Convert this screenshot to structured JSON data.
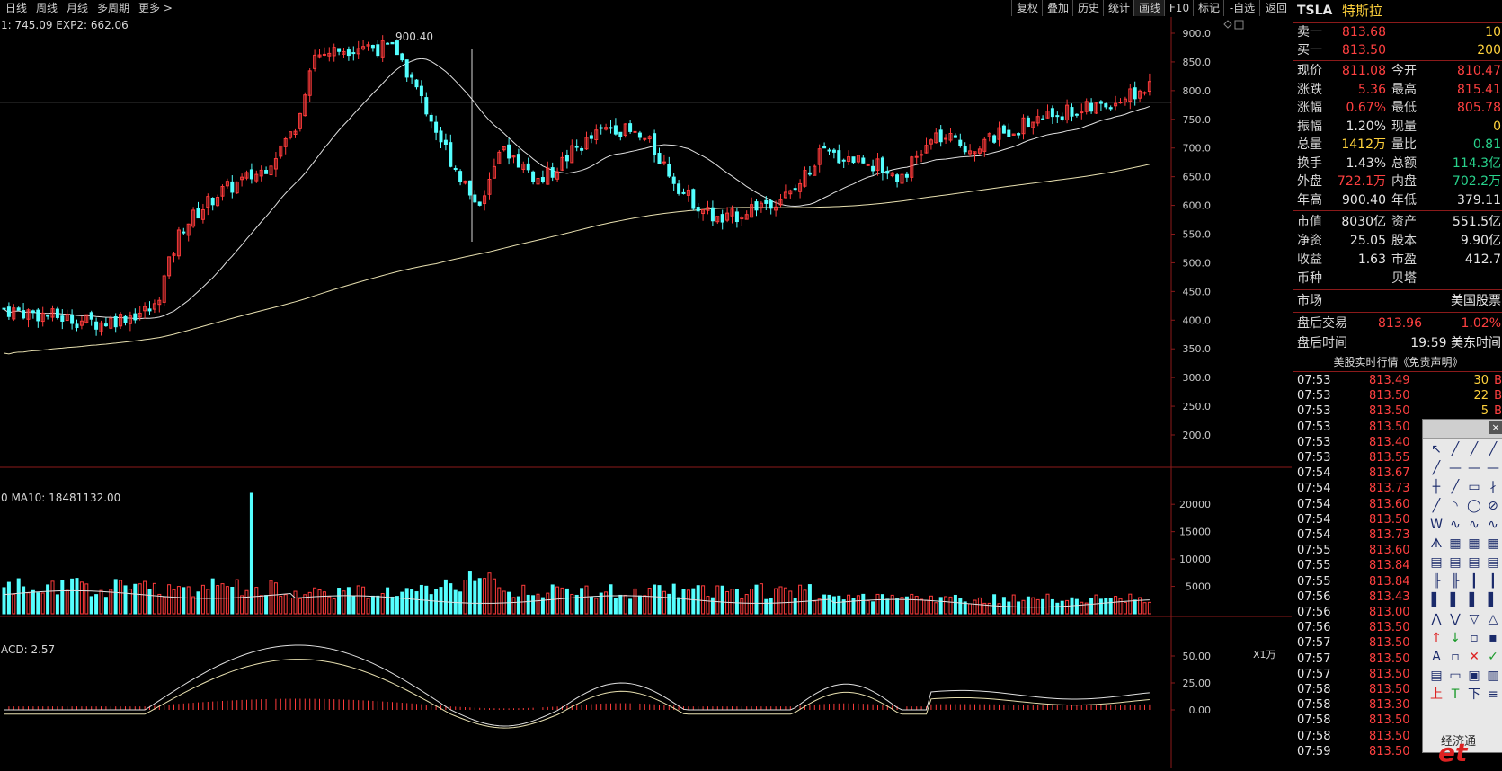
{
  "toolbar": {
    "left": [
      "日线",
      "周线",
      "月线",
      "多周期",
      "更多 >"
    ],
    "right": [
      "复权",
      "叠加",
      "历史",
      "统计",
      "画线",
      "F10",
      "标记",
      "-自选",
      "返回"
    ],
    "active": "画线"
  },
  "main_chart": {
    "indicator_text": "1: 745.09  EXP2: 662.06",
    "y_ticks": [
      "900.0",
      "850.0",
      "800.0",
      "750.0",
      "700.0",
      "650.0",
      "600.0",
      "550.0",
      "500.0",
      "450.0",
      "400.0",
      "350.0",
      "300.0",
      "250.0",
      "200.0"
    ],
    "high_label": "900.40",
    "ref_line_value": 780
  },
  "volume_chart": {
    "indicator_text": "0  MA10: 18481132.00",
    "y_ticks": [
      "20000",
      "15000",
      "10000",
      "5000"
    ],
    "unit": "X1万"
  },
  "macd_chart": {
    "indicator_text": "ACD: 2.57",
    "y_ticks": [
      "50.00",
      "25.00",
      "0.00"
    ]
  },
  "colors": {
    "up": "#ff3b3b",
    "down": "#54ffff",
    "grid": "#8b1a1a",
    "ma1": "#e0e0e0",
    "ma2": "#e8e0b0"
  },
  "quote": {
    "symbol": "TSLA",
    "name": "特斯拉",
    "sell1_label": "卖一",
    "sell1_price": "813.68",
    "sell1_vol": "10",
    "buy1_label": "买一",
    "buy1_price": "813.50",
    "buy1_vol": "200",
    "rows": [
      {
        "l1": "现价",
        "v1": "811.08",
        "c1": "red",
        "l2": "今开",
        "v2": "810.47",
        "c2": "red"
      },
      {
        "l1": "涨跌",
        "v1": "5.36",
        "c1": "red",
        "l2": "最高",
        "v2": "815.41",
        "c2": "red"
      },
      {
        "l1": "涨幅",
        "v1": "0.67%",
        "c1": "red",
        "l2": "最低",
        "v2": "805.78",
        "c2": "red"
      },
      {
        "l1": "振幅",
        "v1": "1.20%",
        "c1": "wht",
        "l2": "现量",
        "v2": "0",
        "c2": "yel"
      },
      {
        "l1": "总量",
        "v1": "1412万",
        "c1": "yel",
        "l2": "量比",
        "v2": "0.81",
        "c2": "grn"
      },
      {
        "l1": "换手",
        "v1": "1.43%",
        "c1": "wht",
        "l2": "总额",
        "v2": "114.3亿",
        "c2": "grn"
      },
      {
        "l1": "外盘",
        "v1": "722.1万",
        "c1": "red",
        "l2": "内盘",
        "v2": "702.2万",
        "c2": "grn"
      },
      {
        "l1": "年高",
        "v1": "900.40",
        "c1": "wht",
        "l2": "年低",
        "v2": "379.11",
        "c2": "wht"
      }
    ],
    "rows2": [
      {
        "l1": "市值",
        "v1": "8030亿",
        "l2": "资产",
        "v2": "551.5亿"
      },
      {
        "l1": "净资",
        "v1": "25.05",
        "l2": "股本",
        "v2": "9.90亿"
      },
      {
        "l1": "收益",
        "v1": "1.63",
        "l2": "市盈",
        "v2": "412.7"
      },
      {
        "l1": "币种",
        "v1": "",
        "l2": "贝塔",
        "v2": ""
      }
    ],
    "market_label": "市场",
    "market_value": "美国股票",
    "after_label": "盘后交易",
    "after_price": "813.96",
    "after_pct": "1.02%",
    "after_time_label": "盘后时间",
    "after_time": "19:59 美东时间",
    "ticks_title": "美股实时行情《免责声明》"
  },
  "ticks": [
    {
      "t": "07:53",
      "p": "813.49",
      "v": "30",
      "f": "B"
    },
    {
      "t": "07:53",
      "p": "813.50",
      "v": "22",
      "f": "B"
    },
    {
      "t": "07:53",
      "p": "813.50",
      "v": "5",
      "f": "B"
    },
    {
      "t": "07:53",
      "p": "813.50",
      "v": "",
      "f": ""
    },
    {
      "t": "07:53",
      "p": "813.40",
      "v": "",
      "f": ""
    },
    {
      "t": "07:53",
      "p": "813.55",
      "v": "",
      "f": ""
    },
    {
      "t": "07:54",
      "p": "813.67",
      "v": "",
      "f": ""
    },
    {
      "t": "07:54",
      "p": "813.73",
      "v": "",
      "f": ""
    },
    {
      "t": "07:54",
      "p": "813.60",
      "v": "",
      "f": ""
    },
    {
      "t": "07:54",
      "p": "813.50",
      "v": "",
      "f": ""
    },
    {
      "t": "07:54",
      "p": "813.73",
      "v": "",
      "f": ""
    },
    {
      "t": "07:55",
      "p": "813.60",
      "v": "",
      "f": ""
    },
    {
      "t": "07:55",
      "p": "813.84",
      "v": "",
      "f": ""
    },
    {
      "t": "07:55",
      "p": "813.84",
      "v": "",
      "f": ""
    },
    {
      "t": "07:56",
      "p": "813.43",
      "v": "",
      "f": ""
    },
    {
      "t": "07:56",
      "p": "813.00",
      "v": "",
      "f": ""
    },
    {
      "t": "07:56",
      "p": "813.50",
      "v": "",
      "f": ""
    },
    {
      "t": "07:57",
      "p": "813.50",
      "v": "",
      "f": ""
    },
    {
      "t": "07:57",
      "p": "813.50",
      "v": "",
      "f": ""
    },
    {
      "t": "07:57",
      "p": "813.50",
      "v": "",
      "f": ""
    },
    {
      "t": "07:58",
      "p": "813.50",
      "v": "",
      "f": ""
    },
    {
      "t": "07:58",
      "p": "813.30",
      "v": "",
      "f": ""
    },
    {
      "t": "07:58",
      "p": "813.50",
      "v": "",
      "f": ""
    },
    {
      "t": "07:58",
      "p": "813.50",
      "v": "",
      "f": ""
    },
    {
      "t": "07:59",
      "p": "813.50",
      "v": "",
      "f": ""
    }
  ],
  "palette": {
    "footer": "经济通",
    "watermark": "et"
  }
}
